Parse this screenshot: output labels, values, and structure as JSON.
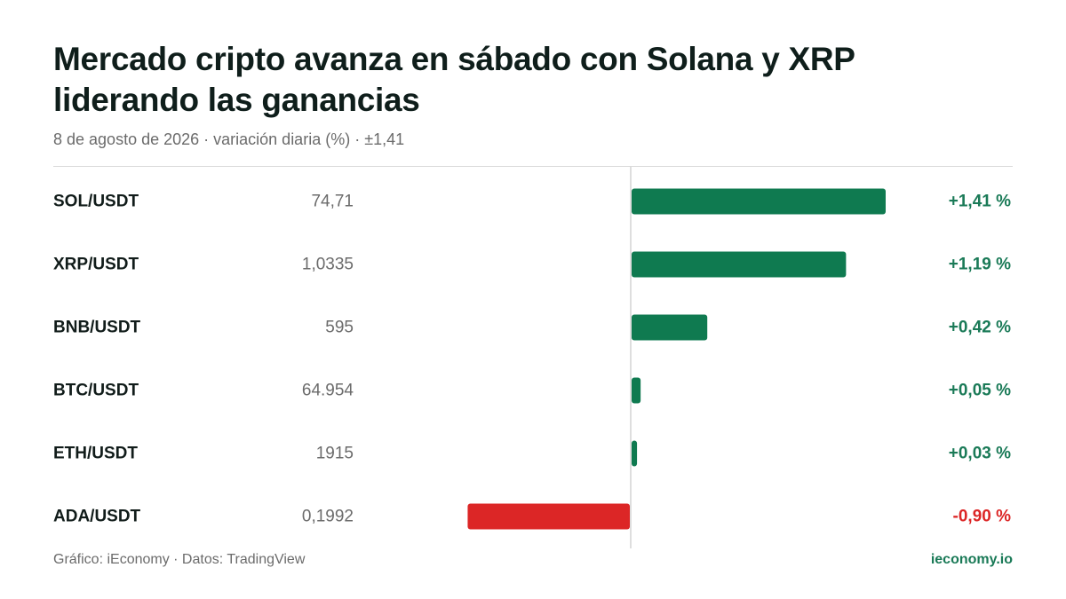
{
  "header": {
    "title": "Mercado cripto avanza en sábado con Solana y XRP liderando las ganancias",
    "subtitle": "8 de agosto de 2026 · variación diaria (%) · ±1,41"
  },
  "footer": {
    "source": "Gráfico: iEconomy · Datos: TradingView",
    "brand": "ieconomy.io"
  },
  "colors": {
    "positive": "#0f7a50",
    "negative": "#dc2626",
    "label_positive": "#1a7a57",
    "label_negative": "#dc2626"
  },
  "chart_data": {
    "type": "bar",
    "orientation": "horizontal",
    "title": "Mercado cripto avanza en sábado con Solana y XRP liderando las ganancias",
    "xlim": [
      -1.41,
      1.41
    ],
    "categories": [
      "SOL/USDT",
      "XRP/USDT",
      "BNB/USDT",
      "BTC/USDT",
      "ETH/USDT",
      "ADA/USDT"
    ],
    "prices": [
      "74,71",
      "1,0335",
      "595",
      "64.954",
      "1915",
      "0,1992"
    ],
    "values": [
      1.41,
      1.19,
      0.42,
      0.05,
      0.03,
      -0.9
    ],
    "value_labels": [
      "+1,41 %",
      "+1,19 %",
      "+0,42 %",
      "+0,05 %",
      "+0,03 %",
      "-0,90 %"
    ],
    "grid": false
  }
}
